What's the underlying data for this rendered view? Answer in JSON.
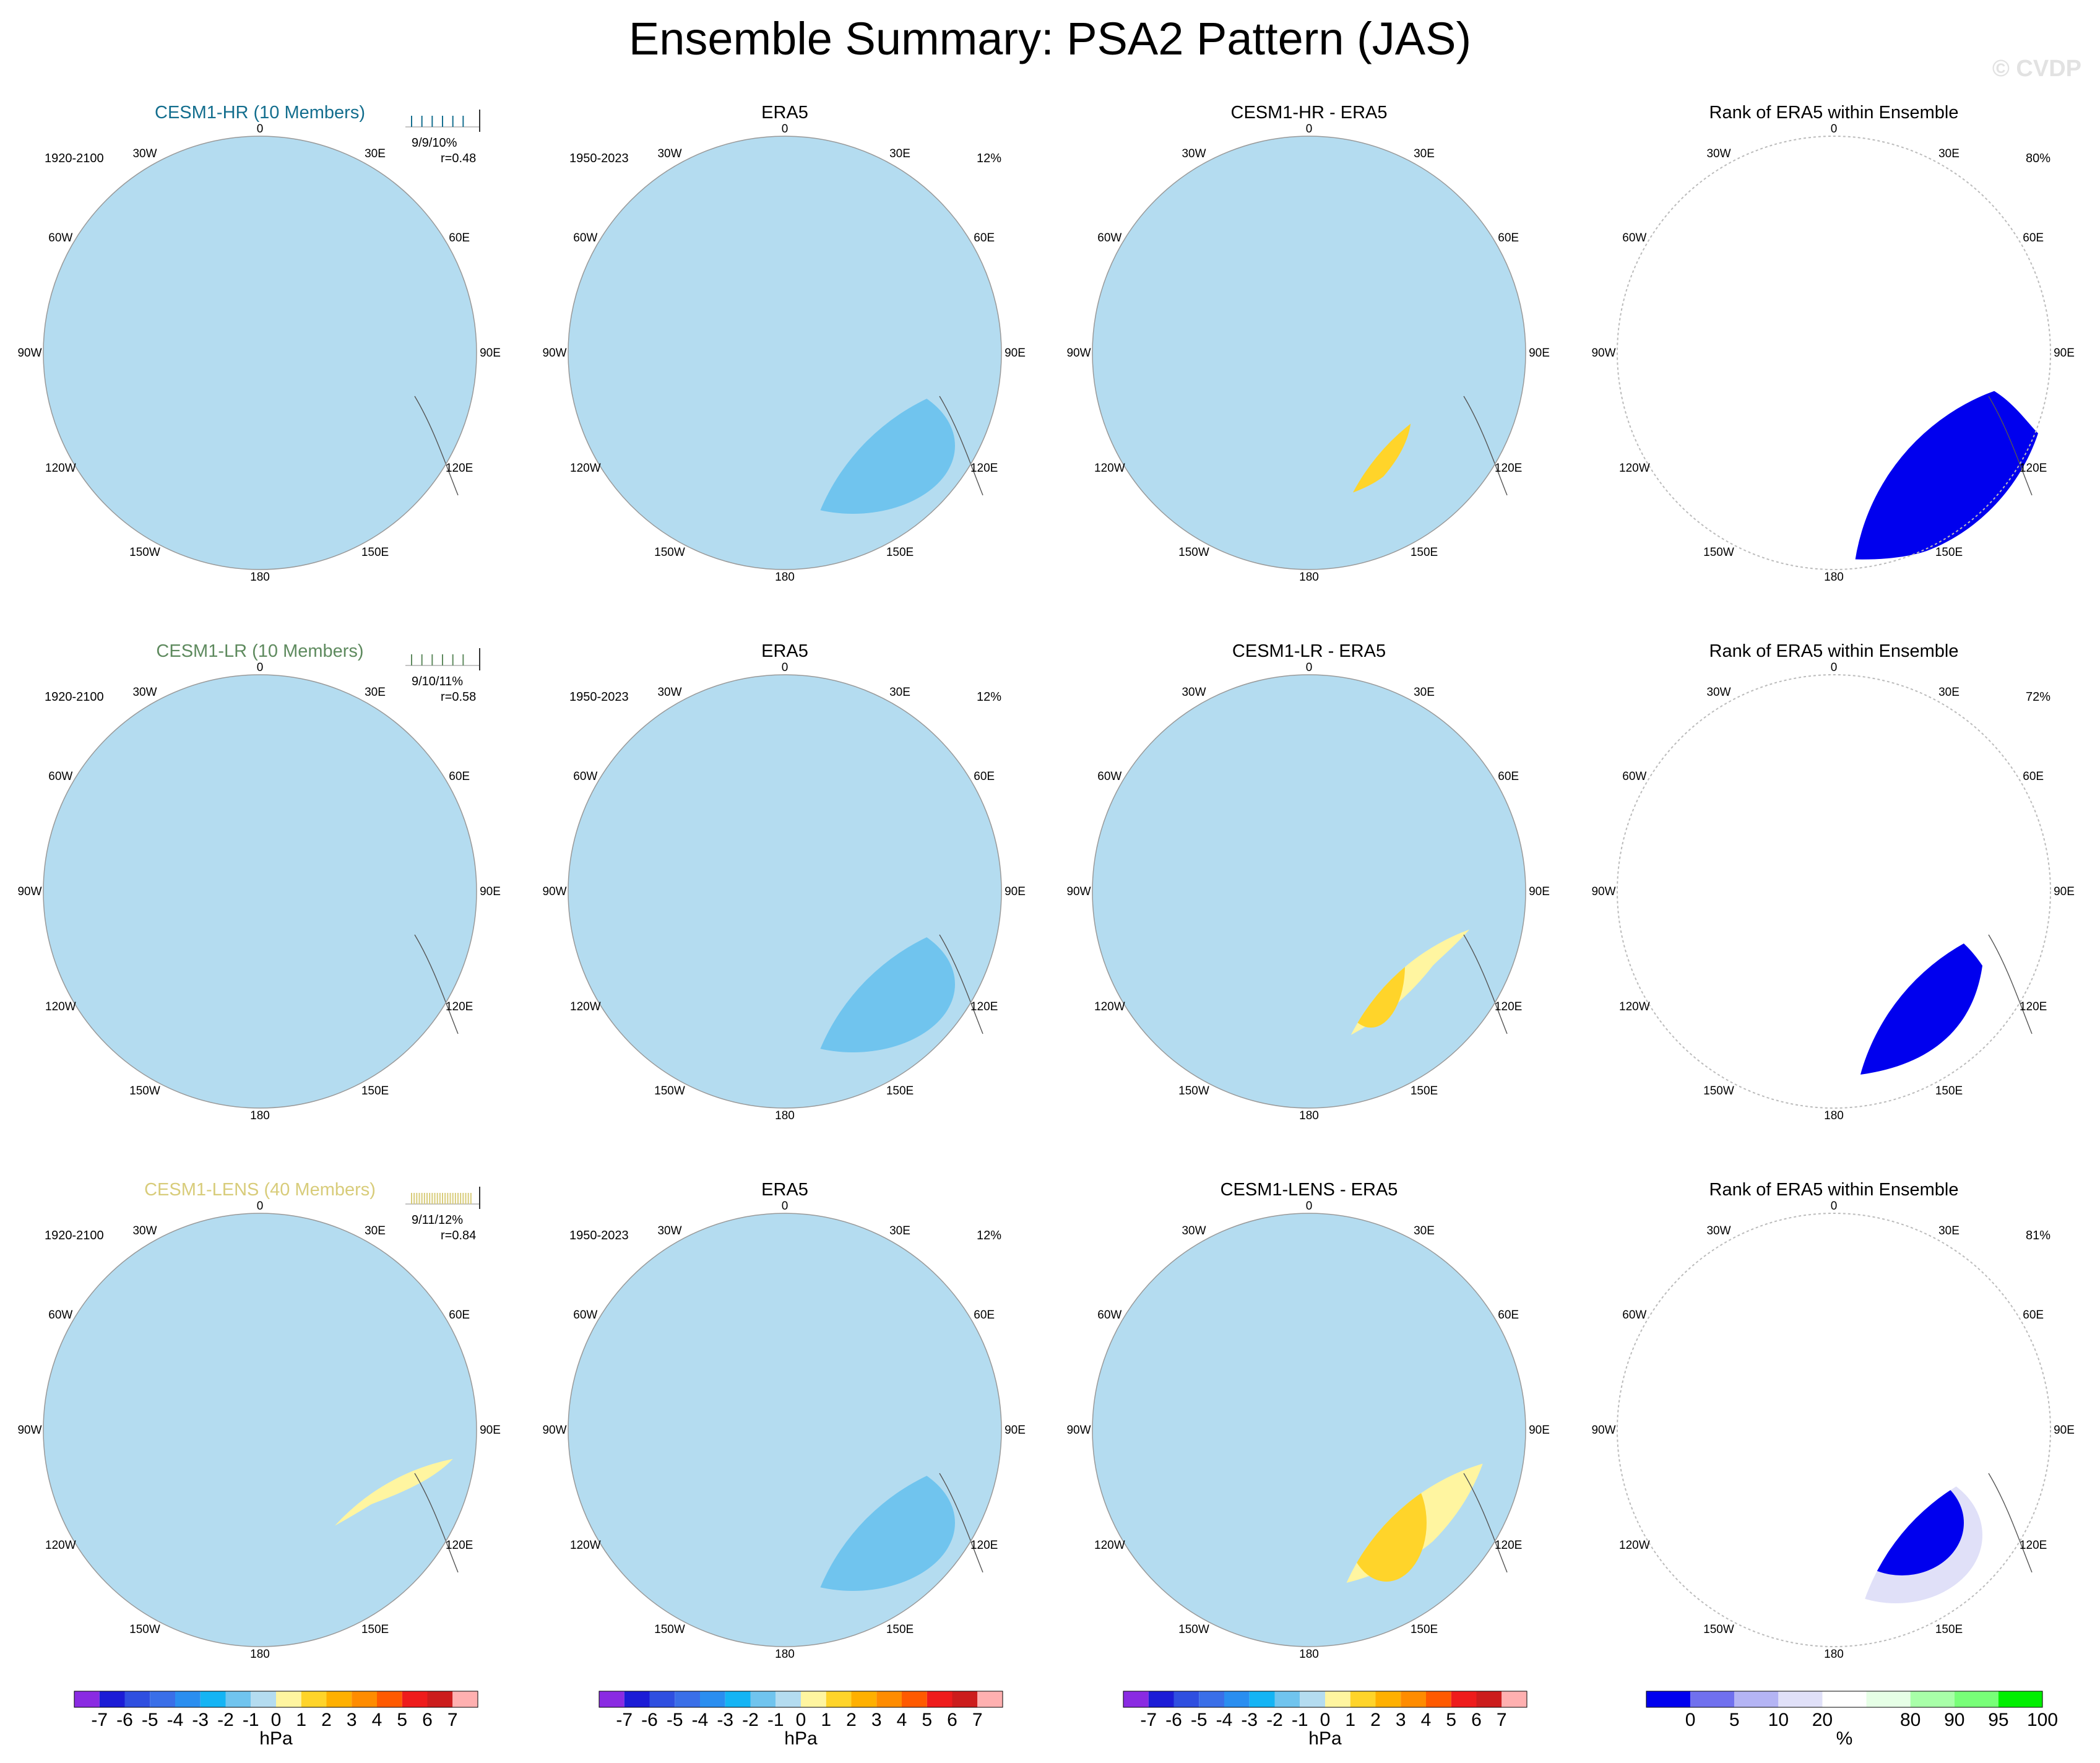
{
  "title": "Ensemble Summary: PSA2 Pattern (JAS)",
  "watermark": "© CVDP",
  "meridian_labels": [
    "0",
    "30E",
    "60E",
    "90E",
    "120E",
    "150E",
    "180",
    "150W",
    "120W",
    "90W",
    "60W",
    "30W"
  ],
  "rows": [
    {
      "model_title": "CESM1-HR (10 Members)",
      "model_title_color": "#136e8e",
      "model_period": "1920-2100",
      "model_stat_line": "9/9/10%",
      "model_r": "r=0.48",
      "obs_title": "ERA5",
      "obs_period": "1950-2023",
      "obs_pct": "12%",
      "diff_title": "CESM1-HR - ERA5",
      "rank_title": "Rank of ERA5 within Ensemble",
      "rank_pct": "80%"
    },
    {
      "model_title": "CESM1-LR (10 Members)",
      "model_title_color": "#5e8a5e",
      "model_period": "1920-2100",
      "model_stat_line": "9/10/11%",
      "model_r": "r=0.58",
      "obs_title": "ERA5",
      "obs_period": "1950-2023",
      "obs_pct": "12%",
      "diff_title": "CESM1-LR - ERA5",
      "rank_title": "Rank of ERA5 within Ensemble",
      "rank_pct": "72%"
    },
    {
      "model_title": "CESM1-LENS (40 Members)",
      "model_title_color": "#d8cc7a",
      "model_period": "1920-2100",
      "model_stat_line": "9/11/12%",
      "model_r": "r=0.84",
      "obs_title": "ERA5",
      "obs_period": "1950-2023",
      "obs_pct": "12%",
      "diff_title": "CESM1-LENS - ERA5",
      "rank_title": "Rank of ERA5 within Ensemble",
      "rank_pct": "81%"
    }
  ],
  "hpa_colorbar": {
    "units": "hPa",
    "tick_labels": [
      "-7",
      "-6",
      "-5",
      "-4",
      "-3",
      "-2",
      "-1",
      "0",
      "1",
      "2",
      "3",
      "4",
      "5",
      "6",
      "7"
    ],
    "colors": [
      "#8a2be2",
      "#1c1cd6",
      "#2f4fe0",
      "#3a6fe8",
      "#2a8ef0",
      "#14b4f4",
      "#70c4ee",
      "#b4dcf0",
      "#fff5a0",
      "#ffd42a",
      "#ffb000",
      "#ff8c00",
      "#ff5a00",
      "#ee1c1c",
      "#cc1d1d",
      "#ffb0b0"
    ]
  },
  "pct_colorbar": {
    "units": "%",
    "tick_labels": [
      "0",
      "5",
      "10",
      "20",
      "80",
      "90",
      "95",
      "100"
    ],
    "colors": [
      "#0000ee",
      "#7070ee",
      "#b4b4f4",
      "#e0e0f8",
      "#ffffff",
      "#e6ffe6",
      "#a8ffa8",
      "#78ff78",
      "#00ee00"
    ]
  },
  "fills": {
    "ocean_default": "#b4dcf0",
    "pos1": "#fff5a0",
    "pos2": "#ffd42a",
    "pos3": "#ffa300",
    "neg1": "#b4dcf0",
    "neg2": "#70c4ee",
    "neg3": "#14b4f4",
    "rank_blue": "#0000ee",
    "rank_lightblue": "#e0e0f8",
    "rank_green": "#00ee00",
    "rank_lightgreen": "#b8ffb8"
  }
}
